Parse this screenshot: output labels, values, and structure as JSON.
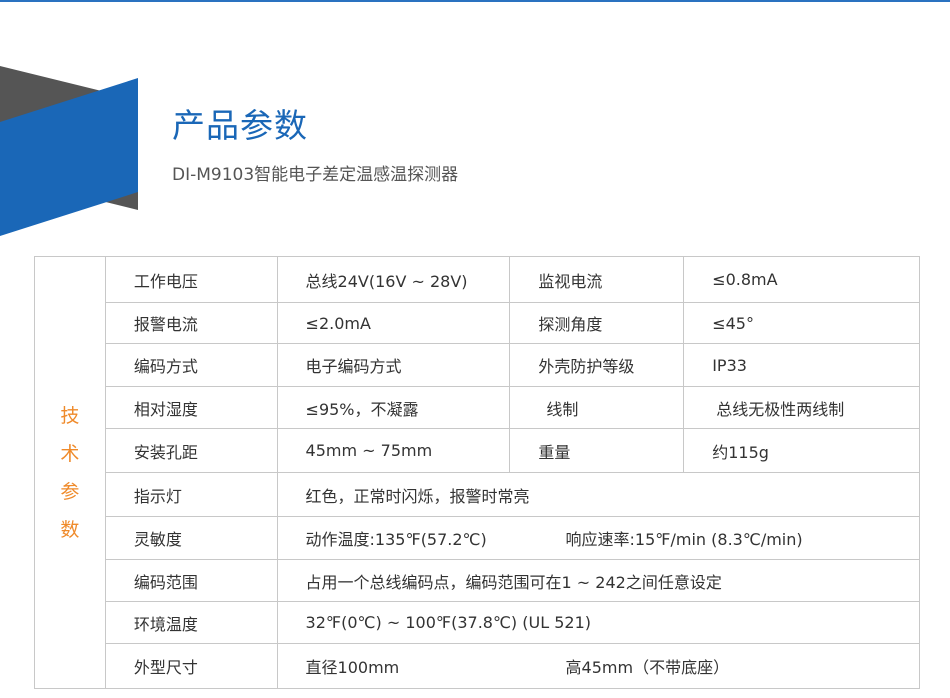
{
  "header": {
    "title": "产品参数",
    "subtitle": "DI-M9103智能电子差定温感温探测器"
  },
  "colors": {
    "accent": "#1a67b7",
    "side_label": "#ef8a2a",
    "deco_gray": "#555555"
  },
  "side_label": [
    "技",
    "术",
    "参",
    "数"
  ],
  "rows4": [
    [
      "工作电压",
      "总线24V(16V ~ 28V)",
      "监视电流",
      "≤0.8mA"
    ],
    [
      "报警电流",
      "≤2.0mA",
      "探测角度",
      "≤45°"
    ],
    [
      "编码方式",
      "电子编码方式",
      "外壳防护等级",
      "IP33"
    ],
    [
      "相对湿度",
      "≤95%，不凝露",
      "线制",
      "总线无极性两线制"
    ],
    [
      "安装孔距",
      "45mm ~ 75mm",
      "重量",
      "约115g"
    ]
  ],
  "rows2": [
    {
      "label": "指示灯",
      "a": "红色，正常时闪烁，报警时常亮",
      "b": ""
    },
    {
      "label": "灵敏度",
      "a": "动作温度:135℉(57.2℃)",
      "b": "响应速率:15℉/min (8.3℃/min)"
    },
    {
      "label": "编码范围",
      "a": "占用一个总线编码点，编码范围可在1 ~ 242之间任意设定",
      "b": ""
    },
    {
      "label": "环境温度",
      "a": "32℉(0℃) ~ 100℉(37.8℃) (UL 521)",
      "b": ""
    },
    {
      "label": "外型尺寸",
      "a": "直径100mm",
      "b": "高45mm（不带底座）"
    }
  ]
}
